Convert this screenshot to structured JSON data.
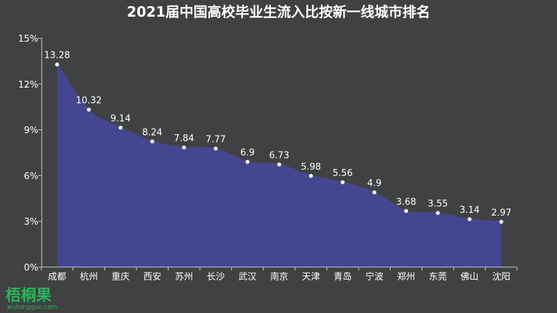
{
  "chart_data": {
    "type": "area",
    "title": "2021届中国高校毕业生流入比按新一线城市排名",
    "categories": [
      "成都",
      "杭州",
      "重庆",
      "西安",
      "苏州",
      "长沙",
      "武汉",
      "南京",
      "天津",
      "青岛",
      "宁波",
      "郑州",
      "东莞",
      "佛山",
      "沈阳"
    ],
    "values": [
      13.28,
      10.32,
      9.14,
      8.24,
      7.84,
      7.77,
      6.9,
      6.73,
      5.98,
      5.56,
      4.9,
      3.68,
      3.55,
      3.14,
      2.97
    ],
    "data_labels": [
      "13.28",
      "10.32",
      "9.14",
      "8.24",
      "7.84",
      "7.77",
      "6.9",
      "6.73",
      "5.98",
      "5.56",
      "4.9",
      "3.68",
      "3.55",
      "3.14",
      "2.97"
    ],
    "y_ticks": [
      0,
      3,
      6,
      9,
      12,
      15
    ],
    "y_tick_labels": [
      "0%",
      "3%",
      "6%",
      "9%",
      "12%",
      "15%"
    ],
    "ylim": [
      0,
      15
    ],
    "grid": false,
    "colors": {
      "fill": "#44468f",
      "line": "#44468f",
      "point": "#ffffff",
      "text": "#ffffff",
      "axis": "#cfcfcf",
      "background": "#3f4143"
    }
  },
  "watermark": {
    "text_cn": "梧桐果",
    "text_en": "wutongguo.com",
    "color": "#2fb35a"
  }
}
